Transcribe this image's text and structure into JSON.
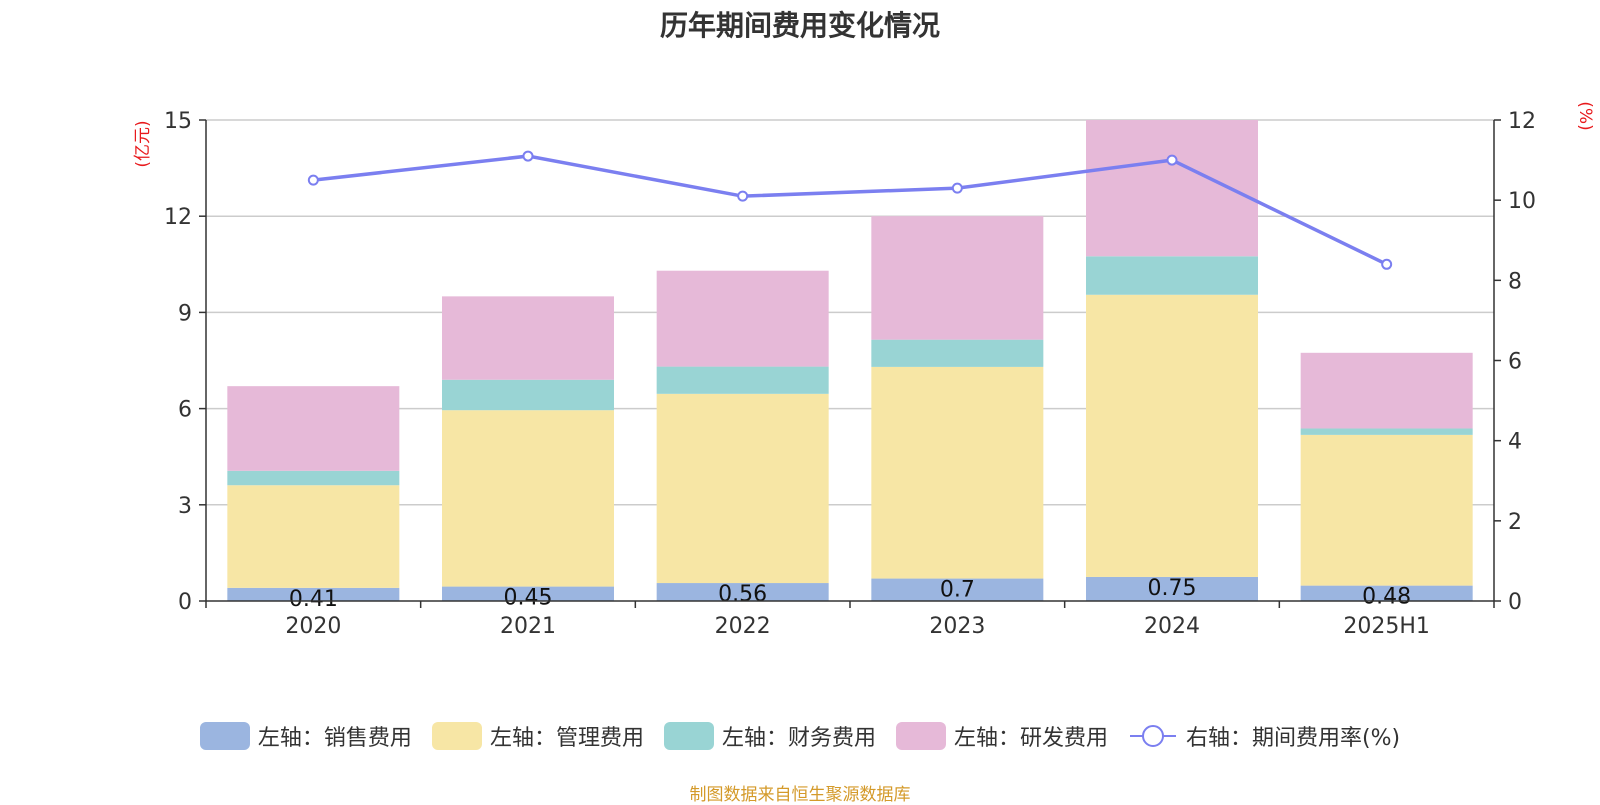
{
  "title": "历年期间费用变化情况",
  "source_note": "制图数据来自恒生聚源数据库",
  "colors": {
    "sales": "#9bb5e0",
    "admin": "#f7e6a5",
    "finance": "#99d4d4",
    "rd": "#e6b9d8",
    "rate_line": "#7b7ff0",
    "axis_unit": "#e8191c",
    "grid": "#cccccc",
    "axis": "#333333"
  },
  "chart_data": {
    "type": "bar",
    "stacked": true,
    "categories": [
      "2020",
      "2021",
      "2022",
      "2023",
      "2024",
      "2025H1"
    ],
    "left_axis": {
      "unit": "(亿元)",
      "ylim": [
        0,
        15
      ],
      "ticks": [
        "0",
        "3",
        "6",
        "9",
        "12",
        "15"
      ]
    },
    "right_axis": {
      "unit": "(%)",
      "ylim": [
        0,
        12
      ],
      "ticks": [
        "0",
        "2",
        "4",
        "6",
        "8",
        "10",
        "12"
      ]
    },
    "series": [
      {
        "name": "左轴：销售费用",
        "type": "bar",
        "color_key": "sales",
        "values": [
          0.41,
          0.45,
          0.56,
          0.7,
          0.75,
          0.48
        ],
        "labels": [
          "0.41",
          "0.45",
          "0.56",
          "0.7",
          "0.75",
          "0.48"
        ]
      },
      {
        "name": "左轴：管理费用",
        "type": "bar",
        "color_key": "admin",
        "values": [
          3.2,
          5.5,
          5.9,
          6.6,
          8.8,
          4.7
        ]
      },
      {
        "name": "左轴：财务费用",
        "type": "bar",
        "color_key": "finance",
        "values": [
          0.45,
          0.95,
          0.85,
          0.85,
          1.2,
          0.2
        ]
      },
      {
        "name": "左轴：研发费用",
        "type": "bar",
        "color_key": "rd",
        "values": [
          2.64,
          2.6,
          2.99,
          3.85,
          4.25,
          2.36
        ]
      },
      {
        "name": "右轴：期间费用率(%)",
        "type": "line",
        "axis": "right",
        "color_key": "rate_line",
        "values": [
          10.5,
          11.1,
          10.1,
          10.3,
          11.0,
          8.4
        ]
      }
    ],
    "grid": true,
    "legend_position": "bottom"
  }
}
